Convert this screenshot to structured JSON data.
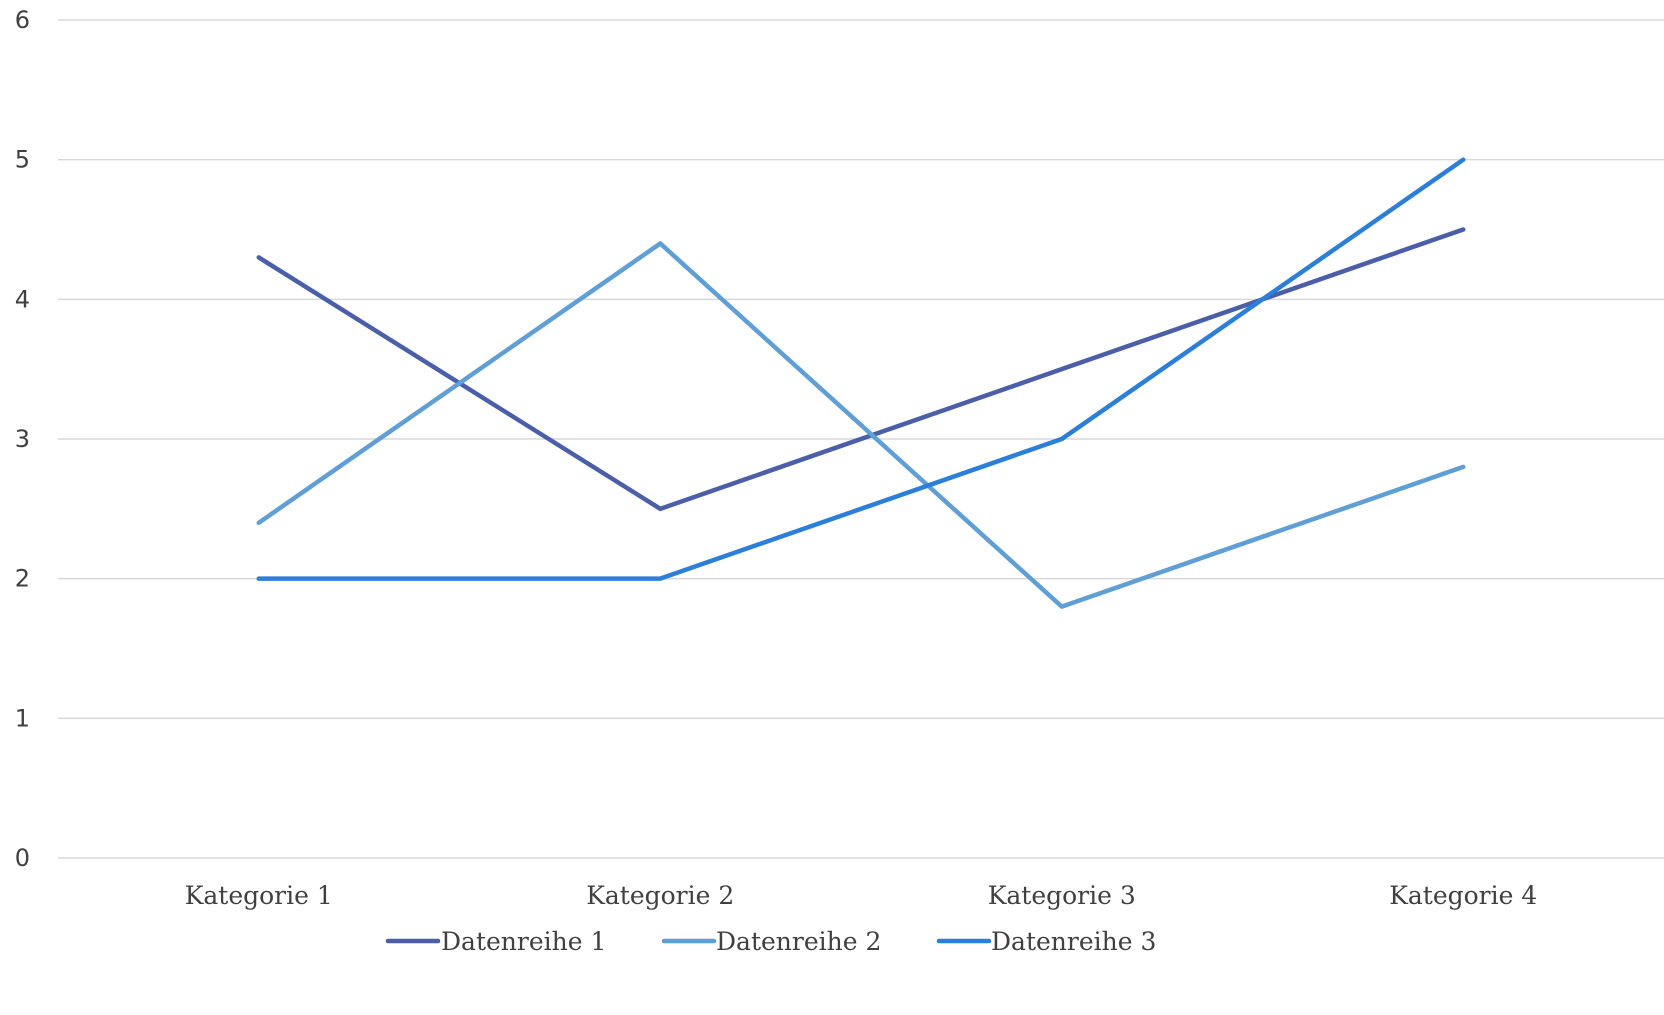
{
  "chart_data": {
    "type": "line",
    "categories": [
      "Kategorie 1",
      "Kategorie 2",
      "Kategorie 3",
      "Kategorie 4"
    ],
    "series": [
      {
        "name": "Datenreihe 1",
        "values": [
          4.3,
          2.5,
          3.5,
          4.5
        ],
        "color": "#4a5fa8"
      },
      {
        "name": "Datenreihe 2",
        "values": [
          2.4,
          4.4,
          1.8,
          2.8
        ],
        "color": "#5f9fd6"
      },
      {
        "name": "Datenreihe 3",
        "values": [
          2,
          2,
          3,
          5
        ],
        "color": "#2b7fd8"
      }
    ],
    "ylim": [
      0,
      6
    ],
    "yticks": [
      "0",
      "1",
      "2",
      "3",
      "4",
      "5",
      "6"
    ],
    "grid": true,
    "legend": "bottom"
  }
}
